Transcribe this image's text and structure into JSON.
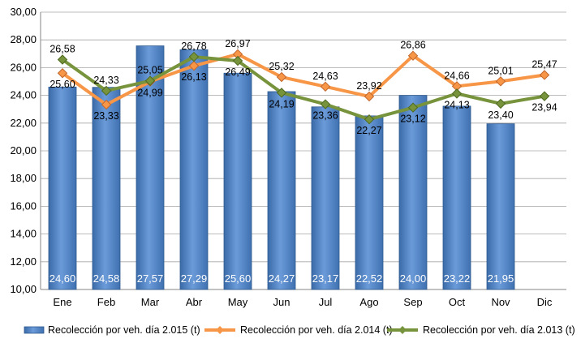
{
  "chart_data": {
    "type": "bar",
    "categories": [
      "Ene",
      "Feb",
      "Mar",
      "Abr",
      "May",
      "Jun",
      "Jul",
      "Ago",
      "Sep",
      "Oct",
      "Nov",
      "Dic"
    ],
    "ylim": [
      10,
      30
    ],
    "yticks": [
      "10,00",
      "12,00",
      "14,00",
      "16,00",
      "18,00",
      "20,00",
      "22,00",
      "24,00",
      "26,00",
      "28,00",
      "30,00"
    ],
    "grid": true,
    "legend_position": "bottom",
    "series": [
      {
        "name": "Recolección por veh. día 2.015 (t)",
        "kind": "bar",
        "color": "#4f81bd",
        "values": [
          24.6,
          24.58,
          27.57,
          27.29,
          25.6,
          24.27,
          23.17,
          22.52,
          24.0,
          23.22,
          21.95,
          null
        ],
        "labels": [
          "24,60",
          "24,58",
          "27,57",
          "27,29",
          "25,60",
          "24,27",
          "23,17",
          "22,52",
          "24,00",
          "23,22",
          "21,95",
          ""
        ]
      },
      {
        "name": "Recolección por veh. día 2.014 (t)",
        "kind": "line",
        "color": "#f79646",
        "values": [
          25.6,
          23.33,
          24.99,
          26.13,
          26.97,
          25.32,
          24.63,
          23.92,
          26.86,
          24.66,
          25.01,
          25.47
        ],
        "labels": [
          "25,60",
          "23,33",
          "24,99",
          "26,13",
          "26,97",
          "25,32",
          "24,63",
          "23,92",
          "26,86",
          "24,66",
          "25,01",
          "25,47"
        ]
      },
      {
        "name": "Recolección por veh. día 2.013 (t)",
        "kind": "line",
        "color": "#77933c",
        "values": [
          26.58,
          24.33,
          25.05,
          26.78,
          26.49,
          24.19,
          23.36,
          22.27,
          23.12,
          24.13,
          23.4,
          23.94
        ],
        "labels": [
          "26,58",
          "24,33",
          "25,05",
          "26,78",
          "26,49",
          "24,19",
          "23,36",
          "22,27",
          "23,12",
          "24,13",
          "23,40",
          "23,94"
        ]
      }
    ]
  }
}
